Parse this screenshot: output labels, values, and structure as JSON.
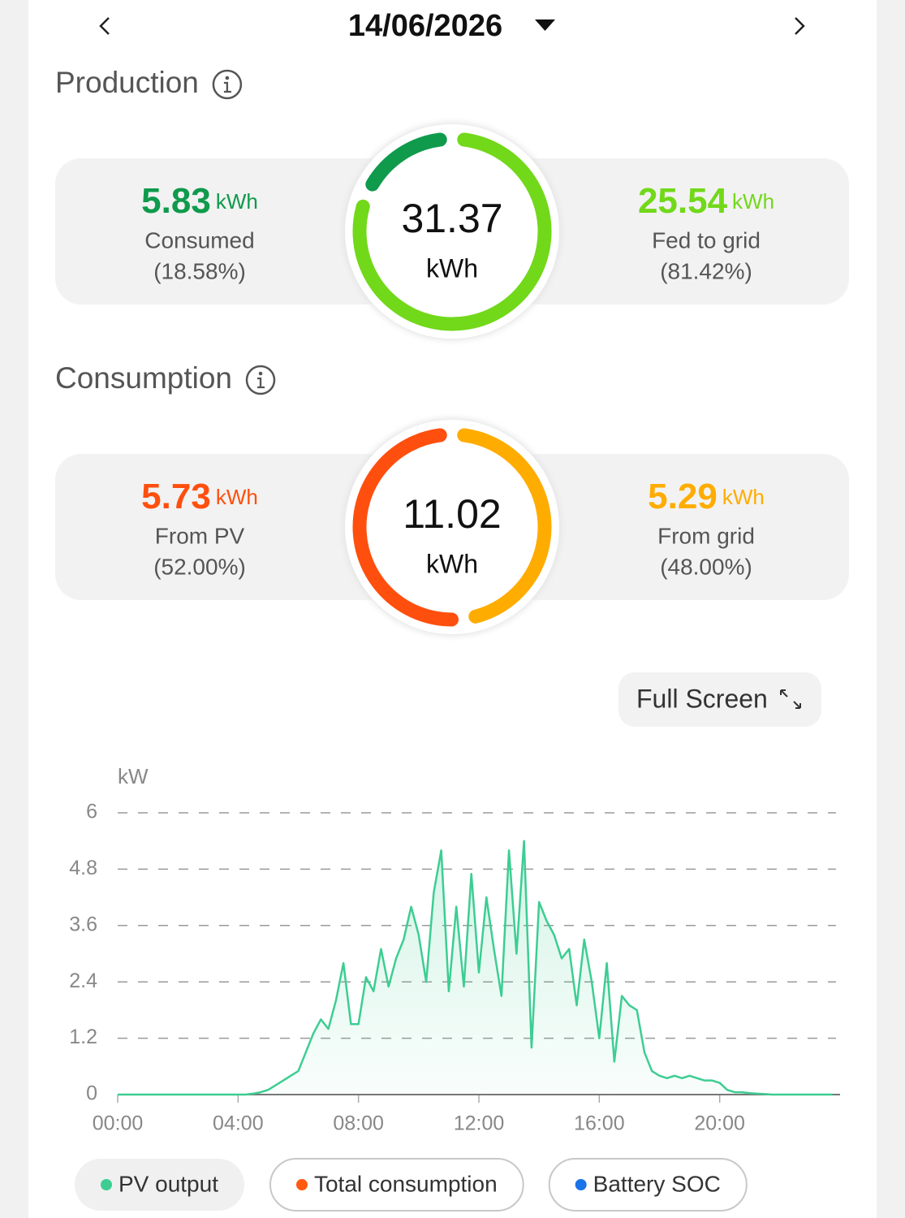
{
  "header": {
    "date": "14/06/2026"
  },
  "production": {
    "title": "Production",
    "total": 31.37,
    "unit": "kWh",
    "left": {
      "value": 5.83,
      "unit": "kWh",
      "label": "Consumed",
      "share": "(18.58%)",
      "color": "#0f9a4c"
    },
    "right": {
      "value": 25.54,
      "unit": "kWh",
      "label": "Fed to grid",
      "share": "(81.42%)",
      "color": "#72d81a"
    }
  },
  "consumption": {
    "title": "Consumption",
    "total": 11.02,
    "unit": "kWh",
    "left": {
      "value": 5.73,
      "unit": "kWh",
      "label": "From PV",
      "share": "(52.00%)",
      "color": "#ff4f0e"
    },
    "right": {
      "value": 5.29,
      "unit": "kWh",
      "label": "From grid",
      "share": "(48.00%)",
      "color": "#ffac00"
    }
  },
  "full_screen": "Full Screen",
  "chart_data": {
    "type": "line",
    "y_label": "kW",
    "x": [
      0,
      0.25,
      0.5,
      0.75,
      1,
      1.25,
      1.5,
      1.75,
      2,
      2.25,
      2.5,
      2.75,
      3,
      3.25,
      3.5,
      3.75,
      4,
      4.25,
      4.5,
      4.75,
      5,
      5.25,
      5.5,
      5.75,
      6,
      6.25,
      6.5,
      6.75,
      7,
      7.25,
      7.5,
      7.75,
      8,
      8.25,
      8.5,
      8.75,
      9,
      9.25,
      9.5,
      9.75,
      10,
      10.25,
      10.5,
      10.75,
      11,
      11.25,
      11.5,
      11.75,
      12,
      12.25,
      12.5,
      12.75,
      13,
      13.25,
      13.5,
      13.75,
      14,
      14.25,
      14.5,
      14.75,
      15,
      15.25,
      15.5,
      15.75,
      16,
      16.25,
      16.5,
      16.75,
      17,
      17.25,
      17.5,
      17.75,
      18,
      18.25,
      18.5,
      18.75,
      19,
      19.25,
      19.5,
      19.75,
      20,
      20.25,
      20.5,
      20.75,
      21,
      21.25,
      21.5,
      21.75,
      22,
      22.25,
      22.5,
      22.75,
      23,
      23.25,
      23.5,
      23.75
    ],
    "series": [
      {
        "name": "PV output",
        "color": "#3dcd92",
        "visible": true,
        "values": [
          0,
          0,
          0,
          0,
          0,
          0,
          0,
          0,
          0,
          0,
          0,
          0,
          0,
          0,
          0,
          0,
          0,
          0,
          0.02,
          0.05,
          0.1,
          0.2,
          0.3,
          0.4,
          0.5,
          0.9,
          1.3,
          1.6,
          1.4,
          2.0,
          2.8,
          1.5,
          1.5,
          2.5,
          2.2,
          3.1,
          2.3,
          2.9,
          3.3,
          4.0,
          3.4,
          2.4,
          4.3,
          5.2,
          2.2,
          4.0,
          2.3,
          4.7,
          2.6,
          4.2,
          3.1,
          2.1,
          5.2,
          3.0,
          5.4,
          1.0,
          4.1,
          3.7,
          3.4,
          2.9,
          3.1,
          1.9,
          3.3,
          2.4,
          1.2,
          2.8,
          0.7,
          2.1,
          1.9,
          1.8,
          0.9,
          0.5,
          0.4,
          0.35,
          0.4,
          0.35,
          0.4,
          0.35,
          0.3,
          0.3,
          0.25,
          0.1,
          0.05,
          0.05,
          0.03,
          0.02,
          0.01,
          0,
          0,
          0,
          0,
          0,
          0,
          0,
          0,
          0
        ]
      },
      {
        "name": "Total consumption",
        "color": "#ff5a10",
        "visible": false
      },
      {
        "name": "Battery SOC",
        "color": "#1a73e8",
        "visible": false
      }
    ],
    "xlim": [
      0,
      24
    ],
    "xticks": [
      {
        "value": 0,
        "label": "00:00"
      },
      {
        "value": 4,
        "label": "04:00"
      },
      {
        "value": 8,
        "label": "08:00"
      },
      {
        "value": 12,
        "label": "12:00"
      },
      {
        "value": 16,
        "label": "16:00"
      },
      {
        "value": 20,
        "label": "20:00"
      }
    ],
    "ylim": [
      0,
      6
    ],
    "yticks": [
      0,
      1.2,
      2.4,
      3.6,
      4.8,
      6
    ],
    "grid": true
  }
}
